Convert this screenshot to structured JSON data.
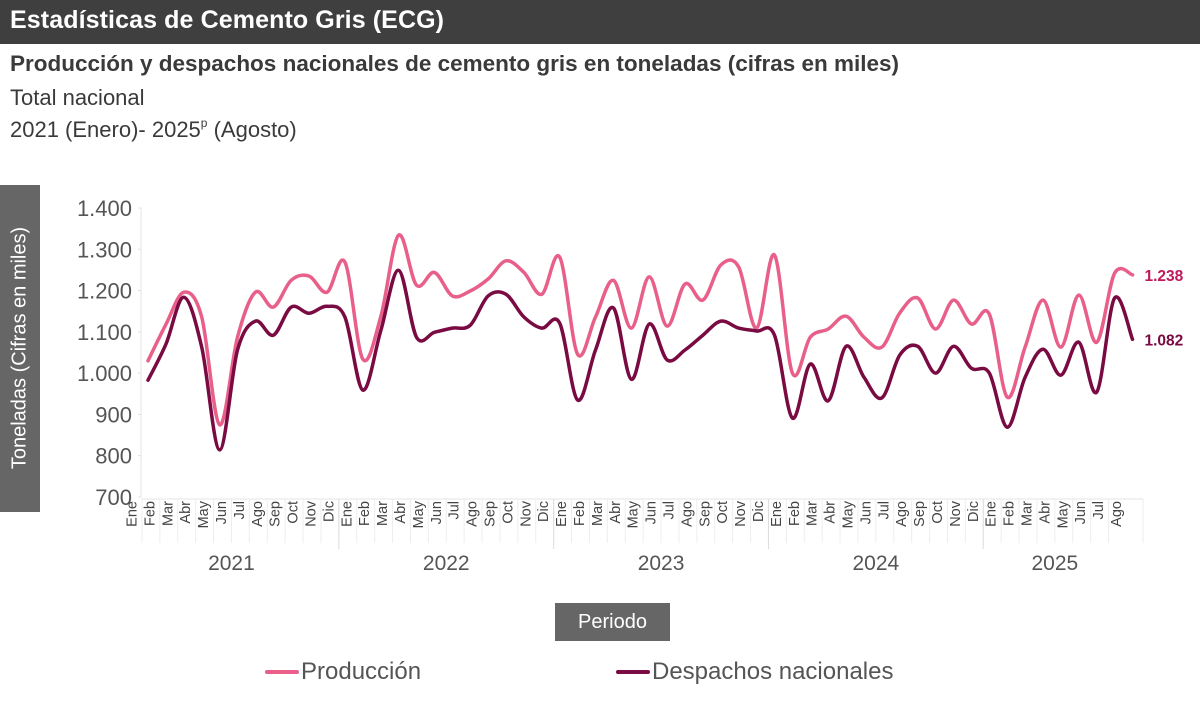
{
  "header": {
    "title": "Estadísticas de Cemento Gris (ECG)"
  },
  "chart_title": "Producción y despachos nacionales de cemento gris en toneladas (cifras en miles)",
  "subtitle_1": "Total nacional",
  "subtitle_2_pre": "2021 (Enero)- 2025",
  "subtitle_2_sup": "p",
  "subtitle_2_post": " (Agosto)",
  "colors": {
    "produccion": "#e8608a",
    "despachos": "#7a0a42",
    "label_produccion": "#c0185a",
    "label_despachos": "#7a0a42"
  },
  "chart_data": {
    "type": "line",
    "title": "Producción y despachos nacionales de cemento gris en toneladas (cifras en miles)",
    "xlabel": "Periodo",
    "ylabel": "Toneladas (Cifras en miles)",
    "ylim": [
      700,
      1400
    ],
    "yticks": [
      700,
      800,
      900,
      1000,
      1100,
      1200,
      1300,
      1400
    ],
    "ytick_labels": [
      "700",
      "800",
      "900",
      "1.000",
      "1.100",
      "1.200",
      "1.300",
      "1.400"
    ],
    "grid": false,
    "legend_position": "bottom",
    "years": [
      {
        "label": "2021",
        "months": 12
      },
      {
        "label": "2022",
        "months": 12
      },
      {
        "label": "2023",
        "months": 12
      },
      {
        "label": "2024",
        "months": 12
      },
      {
        "label": "2025",
        "months": 8
      }
    ],
    "month_labels": [
      "Ene",
      "Feb",
      "Mar",
      "Abr",
      "May",
      "Jun",
      "Jul",
      "Ago",
      "Sep",
      "Oct",
      "Nov",
      "Dic",
      "Ene",
      "Feb",
      "Mar",
      "Abr",
      "May",
      "Jun",
      "Jul",
      "Ago",
      "Sep",
      "Oct",
      "Nov",
      "Dic",
      "Ene",
      "Feb",
      "Mar",
      "Abr",
      "May",
      "Jun",
      "Jul",
      "Ago",
      "Sep",
      "Oct",
      "Nov",
      "Dic",
      "Ene",
      "Feb",
      "Mar",
      "Abr",
      "May",
      "Jun",
      "Jul",
      "Ago",
      "Sep",
      "Oct",
      "Nov",
      "Dic",
      "Ene",
      "Feb",
      "Mar",
      "Abr",
      "May",
      "Jun",
      "Jul",
      "Ago"
    ],
    "series": [
      {
        "name": "Producción",
        "values": [
          1030,
          1118,
          1196,
          1136,
          875,
          1087,
          1196,
          1160,
          1225,
          1235,
          1196,
          1269,
          1034,
          1136,
          1334,
          1213,
          1244,
          1187,
          1199,
          1228,
          1272,
          1244,
          1191,
          1281,
          1046,
          1136,
          1225,
          1109,
          1233,
          1114,
          1216,
          1177,
          1262,
          1257,
          1109,
          1286,
          1000,
          1087,
          1107,
          1138,
          1087,
          1063,
          1146,
          1182,
          1107,
          1177,
          1119,
          1143,
          942,
          1063,
          1177,
          1063,
          1189,
          1075,
          1242,
          1238
        ],
        "end_label": "1.238"
      },
      {
        "name": "Despachos nacionales",
        "values": [
          983,
          1070,
          1184,
          1063,
          814,
          1056,
          1126,
          1092,
          1160,
          1145,
          1162,
          1136,
          959,
          1102,
          1249,
          1087,
          1099,
          1109,
          1116,
          1187,
          1191,
          1136,
          1109,
          1121,
          935,
          1056,
          1158,
          985,
          1119,
          1032,
          1056,
          1092,
          1126,
          1109,
          1102,
          1092,
          891,
          1022,
          933,
          1065,
          990,
          940,
          1044,
          1065,
          1000,
          1065,
          1012,
          1000,
          869,
          990,
          1058,
          995,
          1075,
          954,
          1182,
          1082
        ],
        "end_label": "1.082"
      }
    ]
  }
}
